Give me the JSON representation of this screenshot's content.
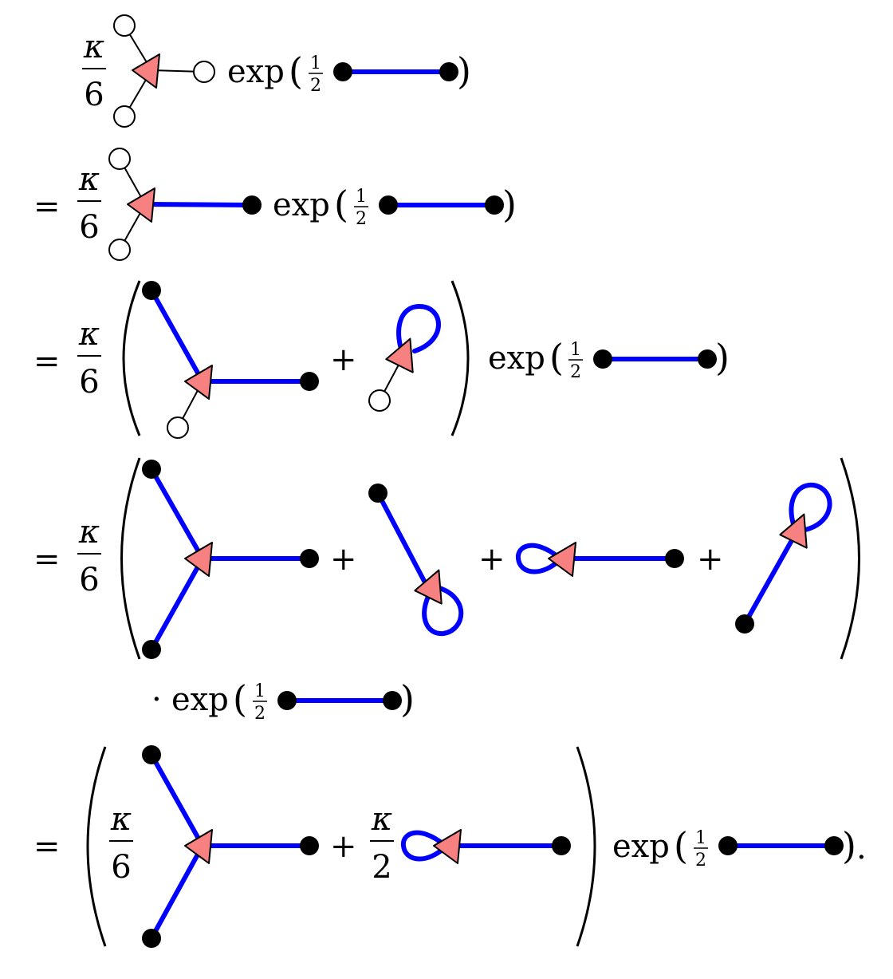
{
  "symbols": {
    "kappa": "κ",
    "six": "6",
    "two": "2",
    "equals": "=",
    "plus": "+",
    "cdot": "·",
    "exp": "exp",
    "lparen": "(",
    "rparen": ")",
    "one": "1",
    "period": "."
  },
  "colors": {
    "propagator": "#0000ff",
    "vertex": "#f78080",
    "external_open": "#ffffff",
    "external_filled": "#000000"
  },
  "lines": [
    {
      "prefix": "",
      "coefficient": "κ/6",
      "terms": [
        "open-open-open vertex"
      ],
      "factor": "exp(½ ●—●)"
    },
    {
      "prefix": "=",
      "coefficient": "κ/6",
      "terms": [
        "open-open vertex with one filled propagator"
      ],
      "factor": "exp(½ ●—●)"
    },
    {
      "prefix": "=",
      "coefficient": "κ/6",
      "terms": [
        "two propagators + one open leg",
        "tadpole with open leg"
      ],
      "factor": "exp(½ ●—●)"
    },
    {
      "prefix": "=",
      "coefficient": "κ/6",
      "terms": [
        "three propagators",
        "tadpole",
        "tadpole",
        "tadpole"
      ],
      "factor": "· exp(½ ●—●)"
    },
    {
      "prefix": "=",
      "coefficient": "κ/6 , κ/2",
      "terms": [
        "three propagators",
        "tadpole"
      ],
      "factor": "exp(½ ●—●)."
    }
  ]
}
